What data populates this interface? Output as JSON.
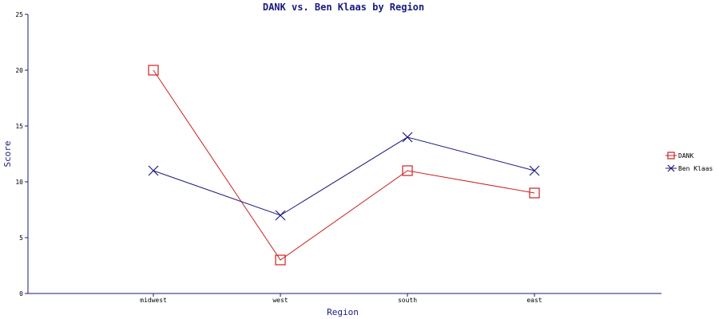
{
  "chart_data": {
    "type": "line",
    "title": "DANK vs. Ben Klaas by Region",
    "xlabel": "Region",
    "ylabel": "Score",
    "categories": [
      "midwest",
      "west",
      "south",
      "east"
    ],
    "ylim": [
      0,
      25
    ],
    "yticks": [
      0,
      5,
      10,
      15,
      20,
      25
    ],
    "grid": false,
    "legend_position": "right",
    "series": [
      {
        "name": "DANK",
        "values": [
          20,
          3,
          11,
          9
        ],
        "color": "#cc2222",
        "marker": "square"
      },
      {
        "name": "Ben Klaas",
        "values": [
          11,
          7,
          14,
          11
        ],
        "color": "#1a1a80",
        "marker": "x"
      }
    ]
  }
}
